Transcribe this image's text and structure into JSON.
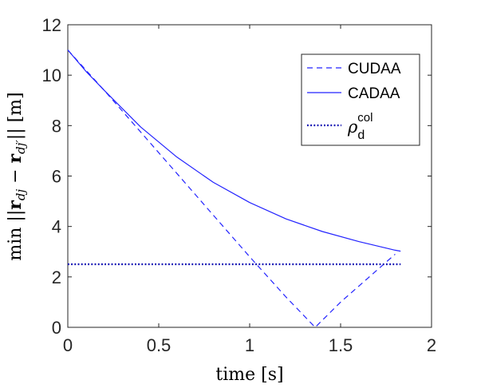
{
  "chart_data": {
    "type": "line",
    "xlabel": "time [s]",
    "ylabel": "min ||r_dj − r_dj′|| [m]",
    "xlim": [
      0,
      2
    ],
    "ylim": [
      0,
      12
    ],
    "x_ticks": [
      0,
      0.5,
      1,
      1.5,
      2
    ],
    "x_tick_labels": [
      "0",
      "0.5",
      "1",
      "1.5",
      "2"
    ],
    "y_ticks": [
      0,
      2,
      4,
      6,
      8,
      10,
      12
    ],
    "y_tick_labels": [
      "0",
      "2",
      "4",
      "6",
      "8",
      "10",
      "12"
    ],
    "grid": false,
    "legend_position": "top-right",
    "series": [
      {
        "name": "CUDAA",
        "style": "dashed",
        "color": "#2323ff",
        "x": [
          0,
          0.1,
          0.2,
          0.4,
          0.6,
          0.8,
          1.0,
          1.2,
          1.36,
          1.5,
          1.65,
          1.8
        ],
        "y": [
          11.0,
          10.2,
          9.4,
          7.75,
          6.1,
          4.45,
          2.8,
          1.2,
          0.0,
          1.0,
          1.95,
          2.9
        ]
      },
      {
        "name": "CADAA",
        "style": "solid",
        "color": "#2323ff",
        "x": [
          0,
          0.1,
          0.2,
          0.4,
          0.6,
          0.8,
          1.0,
          1.2,
          1.4,
          1.6,
          1.8,
          1.83
        ],
        "y": [
          11.0,
          10.15,
          9.4,
          7.95,
          6.75,
          5.75,
          4.95,
          4.3,
          3.8,
          3.4,
          3.06,
          3.02
        ]
      },
      {
        "name": "ρ_d^col",
        "style": "dotted",
        "color": "#0000b0",
        "x": [
          0,
          1.83
        ],
        "y": [
          2.5,
          2.5
        ]
      }
    ],
    "legend": {
      "entries": [
        {
          "label": "CUDAA",
          "style": "dashed"
        },
        {
          "label": "CADAA",
          "style": "solid"
        },
        {
          "label_main": "ρ",
          "label_sub": "d",
          "label_sup": "col",
          "style": "dotted"
        }
      ]
    }
  }
}
